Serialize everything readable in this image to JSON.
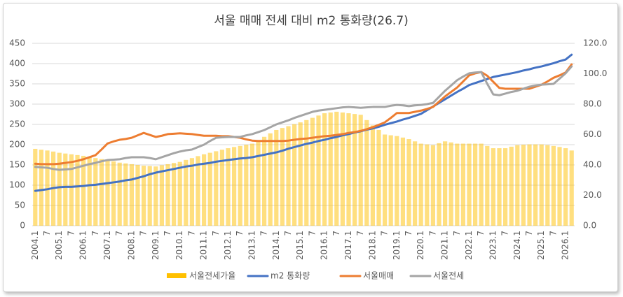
{
  "chart_data": {
    "type": "combo",
    "title": "서울 매매 전세 대비 m2 통화량(26.7)",
    "categories": [
      "2004.1",
      null,
      "7",
      null,
      "2005.1",
      null,
      "7",
      null,
      "2006.1",
      null,
      "7",
      null,
      "2007.1",
      null,
      "7",
      null,
      "2008.1",
      null,
      "7",
      null,
      "2009.1",
      null,
      "7",
      null,
      "2010.1",
      null,
      "7",
      null,
      "2011.1",
      null,
      "7",
      null,
      "2012.1",
      null,
      "7",
      null,
      "2013.1",
      null,
      "7",
      null,
      "2014.1",
      null,
      "7",
      null,
      "2015.1",
      null,
      "7",
      null,
      "2016.1",
      null,
      "7",
      null,
      "2017.1",
      null,
      "7",
      null,
      "2018.1",
      null,
      "7",
      null,
      "2019.1",
      null,
      "7",
      null,
      "2020.1",
      null,
      "7",
      null,
      "2021.1",
      null,
      "7",
      null,
      "2022.1",
      null,
      "7",
      null,
      "2023.1",
      null,
      "7",
      null,
      "2024.1",
      null,
      "7",
      null,
      "2025.1",
      null,
      "7",
      null,
      "2026.1",
      null
    ],
    "ylim": [
      0,
      450
    ],
    "yticks": [
      0,
      50,
      100,
      150,
      200,
      250,
      300,
      350,
      400,
      450
    ],
    "y2lim": [
      0,
      120
    ],
    "y2ticks": [
      {
        "value": 0,
        "label": "0.0"
      },
      {
        "value": 20,
        "label": "20.0"
      },
      {
        "value": 40,
        "label": "40.0"
      },
      {
        "value": 60,
        "label": "60.0"
      },
      {
        "value": 80,
        "label": "80.0"
      },
      {
        "value": 100,
        "label": "100.0"
      },
      {
        "value": 120,
        "label": "120.0"
      }
    ],
    "grid": true,
    "legend": "bottom",
    "series": [
      {
        "name": "서울전세가율",
        "type": "bar",
        "axis": "y2",
        "color": "#ffc000",
        "values": [
          50.6,
          50,
          49.5,
          48.8,
          48,
          47.5,
          47,
          46.5,
          46,
          45.3,
          44.5,
          43.8,
          43,
          42.3,
          41.5,
          41,
          40.5,
          40,
          39.5,
          39.3,
          39,
          39.8,
          40.5,
          41.3,
          42,
          43.3,
          44.5,
          45.8,
          47,
          48,
          49,
          50,
          51,
          51.8,
          52.5,
          53.3,
          54,
          56.3,
          58.5,
          60.8,
          63,
          64.3,
          65.5,
          66.8,
          68,
          69.5,
          71,
          72.5,
          74,
          74.5,
          75,
          74.5,
          74,
          73.5,
          73,
          69.5,
          66,
          63,
          60,
          59.5,
          59,
          58,
          57,
          55.5,
          54,
          53.5,
          53,
          54.3,
          55.5,
          54.8,
          54,
          54,
          54,
          54,
          54,
          52.5,
          51,
          51,
          51,
          52,
          53,
          53.3,
          53.5,
          53.5,
          53.5,
          53,
          52.5,
          51.8,
          51,
          49.5
        ]
      },
      {
        "name": "m2 통화량",
        "type": "line",
        "color": "#4472c4",
        "values": [
          86,
          88,
          90,
          93,
          95,
          96,
          96,
          97,
          98,
          100,
          101,
          103,
          105,
          107,
          109,
          112,
          114,
          118,
          122,
          127,
          131,
          134,
          137,
          140,
          143,
          146,
          148,
          151,
          153,
          155,
          158,
          160,
          162,
          164,
          166,
          167,
          169,
          172,
          175,
          178,
          181,
          185,
          190,
          194,
          198,
          202,
          205,
          209,
          212,
          216,
          219,
          223,
          226,
          230,
          233,
          237,
          240,
          244,
          249,
          253,
          257,
          262,
          266,
          271,
          276,
          285,
          294,
          303,
          312,
          321,
          330,
          338,
          347,
          352,
          357,
          362,
          367,
          370,
          373,
          376,
          379,
          383,
          386,
          390,
          393,
          397,
          401,
          406,
          410,
          422
        ]
      },
      {
        "name": "서울매매",
        "type": "line",
        "color": "#ed7d31",
        "values": [
          153,
          152,
          152,
          152,
          153,
          155,
          157,
          160,
          164,
          169,
          174,
          188,
          203,
          208,
          212,
          214,
          217,
          223,
          229,
          224,
          219,
          222,
          226,
          227,
          228,
          227,
          226,
          224,
          222,
          222,
          222,
          221,
          221,
          219,
          217,
          213,
          210,
          209,
          209,
          209,
          209,
          209,
          210,
          212,
          214,
          215,
          217,
          219,
          221,
          222,
          224,
          226,
          229,
          231,
          234,
          238,
          243,
          249,
          255,
          266,
          278,
          278,
          278,
          281,
          284,
          288,
          293,
          306,
          319,
          330,
          341,
          356,
          371,
          376,
          379,
          370,
          355,
          340,
          338,
          338,
          338,
          338,
          338,
          343,
          348,
          356,
          365,
          371,
          378,
          398
        ]
      },
      {
        "name": "서울전세",
        "type": "line",
        "color": "#a5a5a5",
        "values": [
          145,
          144,
          143,
          140,
          138,
          139,
          140,
          144,
          148,
          152,
          155,
          159,
          162,
          163,
          164,
          167,
          169,
          169,
          169,
          167,
          164,
          169,
          174,
          179,
          183,
          186,
          188,
          194,
          200,
          209,
          217,
          218,
          219,
          219,
          219,
          223,
          226,
          231,
          236,
          243,
          250,
          255,
          260,
          266,
          271,
          276,
          281,
          284,
          286,
          288,
          290,
          292,
          293,
          292,
          291,
          292,
          293,
          293,
          293,
          296,
          298,
          297,
          295,
          297,
          298,
          300,
          303,
          318,
          333,
          346,
          359,
          368,
          376,
          378,
          379,
          350,
          324,
          322,
          326,
          330,
          333,
          338,
          343,
          346,
          348,
          349,
          350,
          363,
          376,
          393
        ]
      }
    ]
  }
}
